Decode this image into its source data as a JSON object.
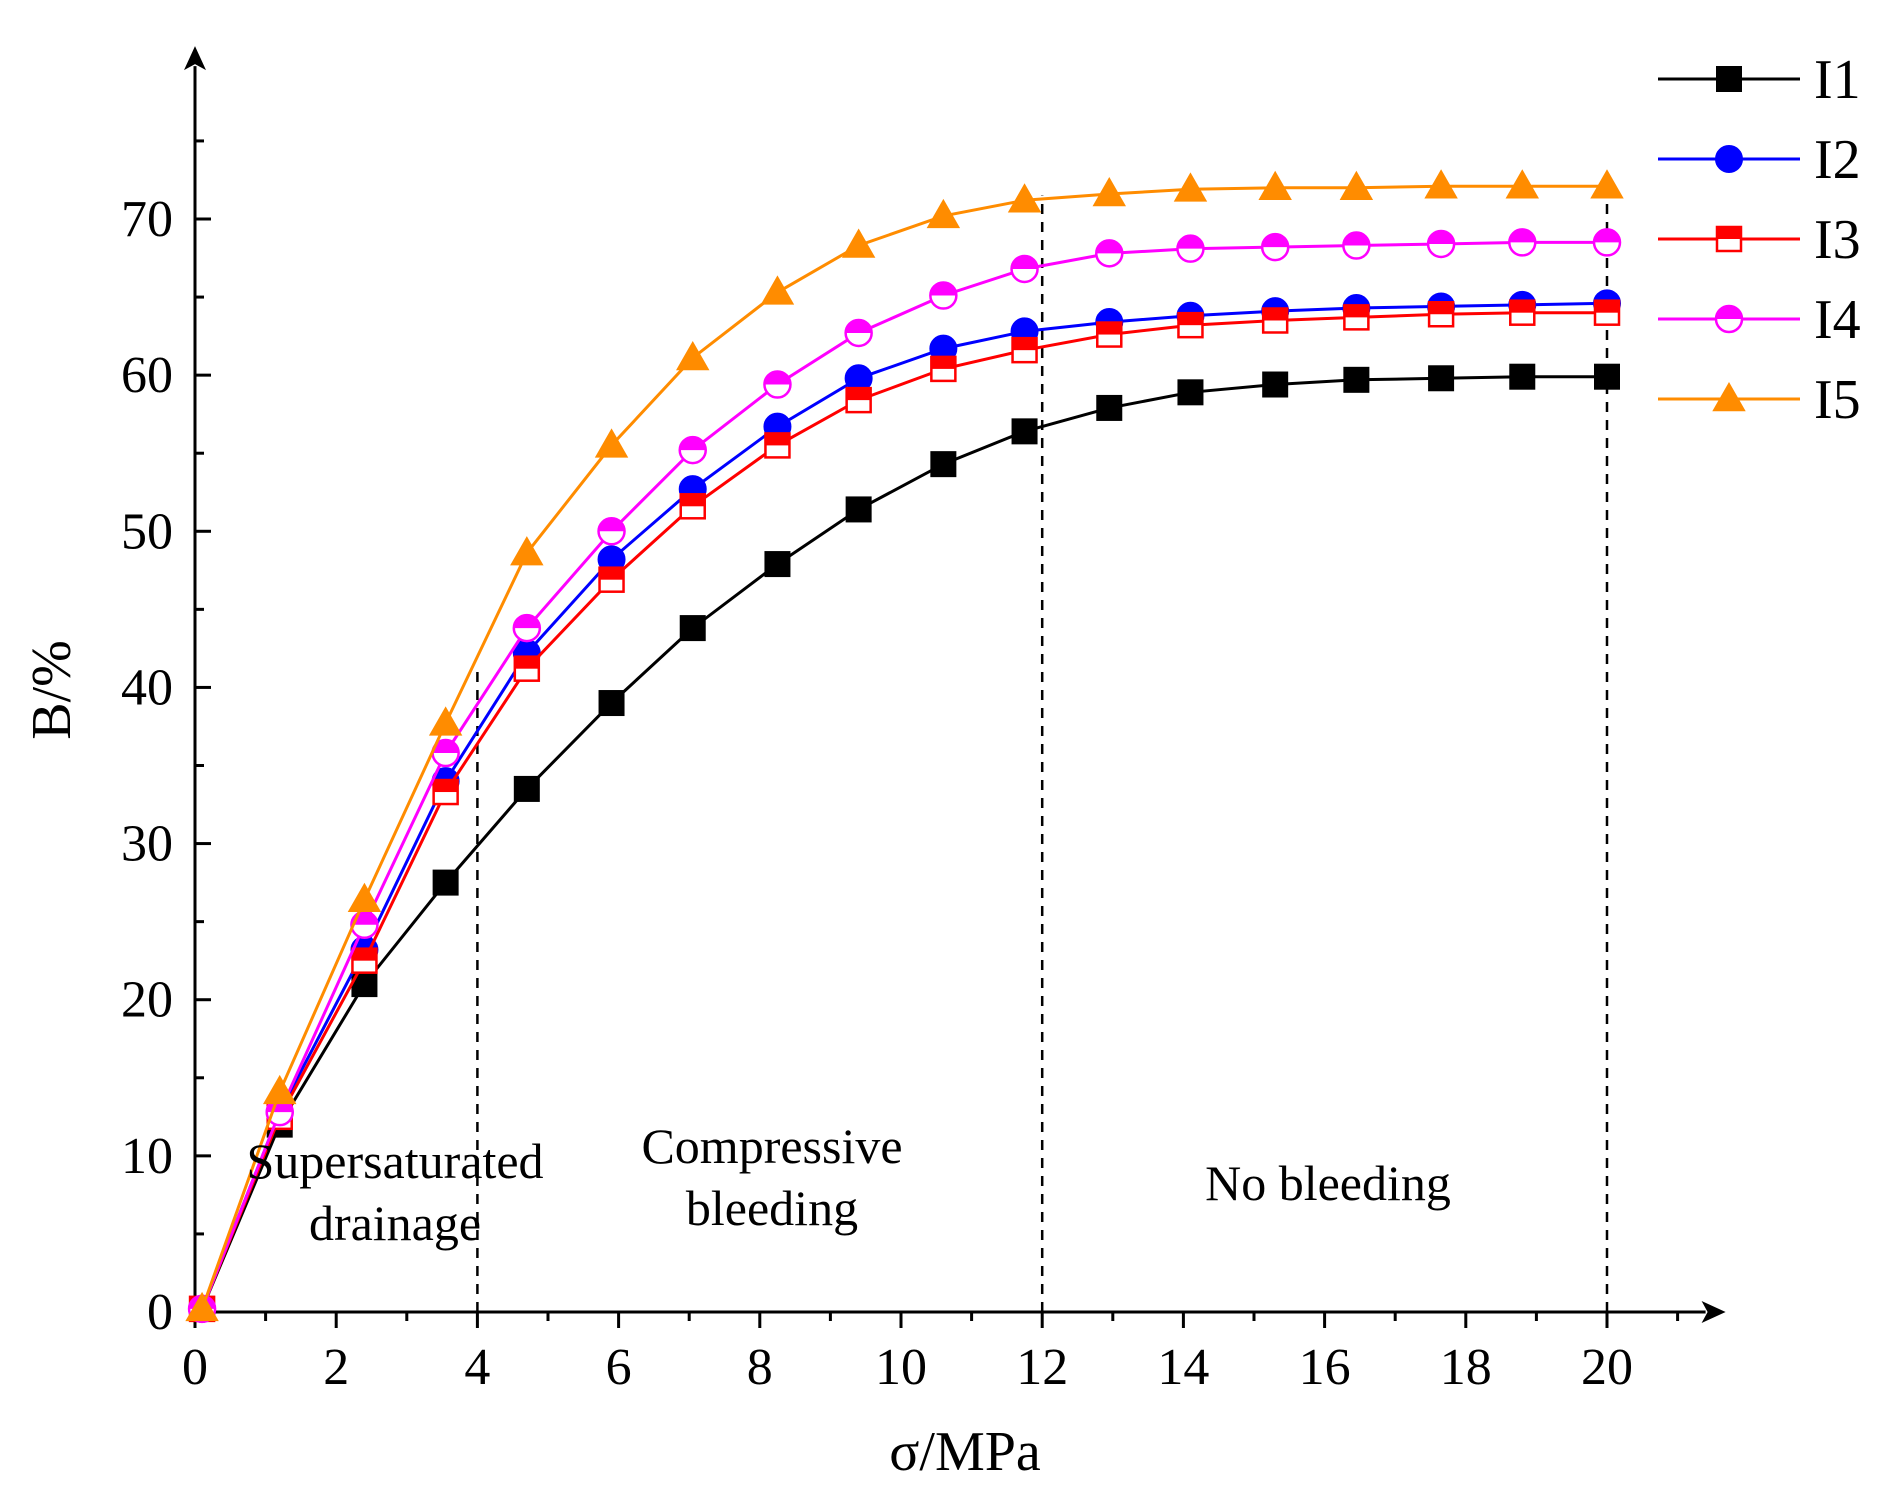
{
  "chart_data": {
    "type": "line",
    "title": "",
    "xlabel": "σ/MPa",
    "ylabel": "B/%",
    "xlim": [
      0,
      21
    ],
    "ylim": [
      0,
      78
    ],
    "xticks": [
      0,
      2,
      4,
      6,
      8,
      10,
      12,
      14,
      16,
      18,
      20
    ],
    "yticks": [
      0,
      10,
      20,
      30,
      40,
      50,
      60,
      70
    ],
    "grid": false,
    "legend_position": "top-right",
    "x": [
      0.1,
      1.2,
      2.4,
      3.55,
      4.7,
      5.9,
      7.05,
      8.25,
      9.4,
      10.6,
      11.75,
      12.95,
      14.1,
      15.3,
      16.45,
      17.65,
      18.8,
      20.0
    ],
    "series": [
      {
        "name": "I1",
        "color": "#000000",
        "marker": "square-filled",
        "values": [
          0.2,
          12.0,
          21.0,
          27.5,
          33.5,
          39.0,
          43.8,
          47.9,
          51.4,
          54.3,
          56.4,
          57.9,
          58.9,
          59.4,
          59.7,
          59.8,
          59.9,
          59.9
        ]
      },
      {
        "name": "I2",
        "color": "#0000ff",
        "marker": "circle-filled",
        "values": [
          0.2,
          12.8,
          23.2,
          34.0,
          42.2,
          48.2,
          52.7,
          56.7,
          59.8,
          61.7,
          62.8,
          63.4,
          63.8,
          64.1,
          64.3,
          64.4,
          64.5,
          64.6
        ]
      },
      {
        "name": "I3",
        "color": "#ff0000",
        "marker": "square-half",
        "values": [
          0.2,
          12.5,
          22.5,
          33.3,
          41.2,
          46.9,
          51.6,
          55.5,
          58.4,
          60.4,
          61.6,
          62.6,
          63.2,
          63.5,
          63.7,
          63.9,
          64.0,
          64.0
        ]
      },
      {
        "name": "I4",
        "color": "#ff00ff",
        "marker": "circle-half",
        "values": [
          0.2,
          12.8,
          24.8,
          35.8,
          43.8,
          50.0,
          55.2,
          59.4,
          62.7,
          65.1,
          66.8,
          67.8,
          68.1,
          68.2,
          68.3,
          68.4,
          68.5,
          68.5
        ]
      },
      {
        "name": "I5",
        "color": "#ff8c00",
        "marker": "triangle-filled",
        "values": [
          0.2,
          14.1,
          26.4,
          37.7,
          48.6,
          55.5,
          61.1,
          65.3,
          68.3,
          70.2,
          71.2,
          71.6,
          71.9,
          72.0,
          72.0,
          72.1,
          72.1,
          72.1
        ]
      }
    ],
    "reference_lines_x": [
      4,
      12,
      20
    ],
    "annotations": [
      {
        "id": "supersaturated",
        "lines": [
          "Supersaturated",
          "drainage"
        ]
      },
      {
        "id": "compressive",
        "lines": [
          "Compressive",
          "bleeding"
        ]
      },
      {
        "id": "no-bleeding",
        "lines": [
          "No bleeding"
        ]
      }
    ]
  }
}
